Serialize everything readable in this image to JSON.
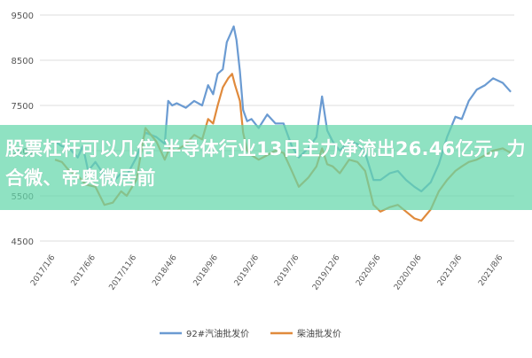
{
  "chart_data": {
    "type": "line",
    "ylim": [
      4500,
      9500
    ],
    "yticks": [
      4500,
      5500,
      6500,
      7500,
      8500,
      9500
    ],
    "xticks": [
      "2017/1/6",
      "2017/6/6",
      "2017/11/6",
      "2018/4/6",
      "2018/9/6",
      "2019/2/6",
      "2019/7/6",
      "2019/12/6",
      "2020/5/6",
      "2020/10/6",
      "2021/3/6",
      "2021/8/6"
    ],
    "grid": true,
    "legend_position": "bottom",
    "series": [
      {
        "name": "92#汽油批发价",
        "color": "#6b9bd2",
        "points": [
          [
            "2017-01-06",
            6700
          ],
          [
            "2017-02-01",
            6600
          ],
          [
            "2017-03-01",
            6550
          ],
          [
            "2017-04-01",
            6350
          ],
          [
            "2017-04-20",
            6600
          ],
          [
            "2017-05-10",
            6050
          ],
          [
            "2017-06-06",
            6250
          ],
          [
            "2017-07-10",
            5950
          ],
          [
            "2017-08-10",
            5800
          ],
          [
            "2017-09-10",
            6000
          ],
          [
            "2017-10-01",
            5950
          ],
          [
            "2017-11-06",
            6350
          ],
          [
            "2017-12-10",
            6900
          ],
          [
            "2018-01-20",
            6800
          ],
          [
            "2018-02-20",
            6650
          ],
          [
            "2018-03-05",
            7600
          ],
          [
            "2018-03-20",
            7500
          ],
          [
            "2018-04-06",
            7550
          ],
          [
            "2018-05-10",
            7450
          ],
          [
            "2018-06-10",
            7600
          ],
          [
            "2018-07-10",
            7500
          ],
          [
            "2018-08-01",
            7950
          ],
          [
            "2018-08-20",
            7750
          ],
          [
            "2018-09-06",
            8200
          ],
          [
            "2018-09-25",
            8300
          ],
          [
            "2018-10-10",
            8900
          ],
          [
            "2018-10-25",
            9100
          ],
          [
            "2018-11-05",
            9250
          ],
          [
            "2018-11-15",
            8950
          ],
          [
            "2018-11-28",
            8250
          ],
          [
            "2018-12-10",
            7400
          ],
          [
            "2018-12-25",
            7150
          ],
          [
            "2019-01-10",
            7200
          ],
          [
            "2019-02-06",
            7000
          ],
          [
            "2019-03-10",
            7300
          ],
          [
            "2019-04-10",
            7100
          ],
          [
            "2019-05-10",
            7100
          ],
          [
            "2019-06-10",
            6600
          ],
          [
            "2019-07-06",
            6350
          ],
          [
            "2019-08-10",
            6550
          ],
          [
            "2019-09-10",
            6800
          ],
          [
            "2019-10-01",
            7700
          ],
          [
            "2019-10-20",
            6950
          ],
          [
            "2019-11-10",
            6700
          ],
          [
            "2019-12-06",
            6500
          ],
          [
            "2020-01-10",
            6700
          ],
          [
            "2020-02-10",
            6650
          ],
          [
            "2020-03-10",
            6450
          ],
          [
            "2020-04-10",
            5850
          ],
          [
            "2020-05-06",
            5850
          ],
          [
            "2020-06-10",
            6000
          ],
          [
            "2020-07-10",
            6050
          ],
          [
            "2020-08-10",
            5850
          ],
          [
            "2020-09-10",
            5700
          ],
          [
            "2020-10-06",
            5600
          ],
          [
            "2020-11-10",
            5800
          ],
          [
            "2020-12-10",
            6200
          ],
          [
            "2021-01-10",
            6800
          ],
          [
            "2021-02-10",
            7250
          ],
          [
            "2021-03-06",
            7200
          ],
          [
            "2021-04-01",
            7600
          ],
          [
            "2021-05-01",
            7850
          ],
          [
            "2021-06-01",
            7950
          ],
          [
            "2021-07-01",
            8100
          ],
          [
            "2021-08-06",
            8000
          ],
          [
            "2021-09-05",
            7800
          ]
        ]
      },
      {
        "name": "柴油批发价",
        "color": "#e08a3c",
        "points": [
          [
            "2017-01-06",
            6300
          ],
          [
            "2017-02-01",
            6250
          ],
          [
            "2017-03-01",
            6050
          ],
          [
            "2017-04-01",
            5950
          ],
          [
            "2017-05-01",
            5750
          ],
          [
            "2017-06-06",
            5700
          ],
          [
            "2017-07-10",
            5300
          ],
          [
            "2017-08-10",
            5350
          ],
          [
            "2017-09-10",
            5600
          ],
          [
            "2017-10-01",
            5500
          ],
          [
            "2017-11-06",
            5850
          ],
          [
            "2017-12-10",
            7000
          ],
          [
            "2018-01-20",
            6700
          ],
          [
            "2018-02-20",
            6300
          ],
          [
            "2018-03-10",
            6550
          ],
          [
            "2018-04-06",
            6500
          ],
          [
            "2018-05-10",
            6650
          ],
          [
            "2018-06-10",
            6850
          ],
          [
            "2018-07-10",
            6750
          ],
          [
            "2018-08-01",
            7200
          ],
          [
            "2018-08-20",
            7100
          ],
          [
            "2018-09-06",
            7500
          ],
          [
            "2018-09-25",
            7900
          ],
          [
            "2018-10-15",
            8100
          ],
          [
            "2018-10-30",
            8200
          ],
          [
            "2018-11-10",
            7950
          ],
          [
            "2018-11-28",
            7600
          ],
          [
            "2018-12-10",
            6900
          ],
          [
            "2018-12-25",
            6500
          ],
          [
            "2019-01-10",
            6400
          ],
          [
            "2019-02-06",
            6300
          ],
          [
            "2019-03-10",
            6400
          ],
          [
            "2019-04-10",
            6500
          ],
          [
            "2019-05-10",
            6450
          ],
          [
            "2019-06-10",
            6050
          ],
          [
            "2019-07-06",
            5700
          ],
          [
            "2019-08-10",
            5900
          ],
          [
            "2019-09-10",
            6150
          ],
          [
            "2019-10-01",
            6550
          ],
          [
            "2019-10-20",
            6200
          ],
          [
            "2019-11-10",
            6150
          ],
          [
            "2019-12-06",
            6000
          ],
          [
            "2020-01-10",
            6300
          ],
          [
            "2020-02-10",
            6250
          ],
          [
            "2020-03-10",
            6050
          ],
          [
            "2020-04-10",
            5300
          ],
          [
            "2020-05-06",
            5150
          ],
          [
            "2020-06-10",
            5250
          ],
          [
            "2020-07-10",
            5300
          ],
          [
            "2020-08-10",
            5150
          ],
          [
            "2020-09-10",
            5000
          ],
          [
            "2020-10-06",
            4950
          ],
          [
            "2020-11-10",
            5200
          ],
          [
            "2020-12-10",
            5600
          ],
          [
            "2021-01-10",
            5850
          ],
          [
            "2021-02-10",
            6050
          ],
          [
            "2021-03-06",
            6150
          ],
          [
            "2021-04-01",
            6250
          ],
          [
            "2021-05-01",
            6300
          ],
          [
            "2021-06-01",
            6400
          ],
          [
            "2021-07-01",
            6500
          ],
          [
            "2021-08-06",
            6550
          ],
          [
            "2021-09-05",
            6450
          ]
        ]
      }
    ]
  },
  "overlay": {
    "headline": "股票杠杆可以几倍 半导体行业13日主力净流出26.46亿元, 力合微、帝奥微居前"
  }
}
